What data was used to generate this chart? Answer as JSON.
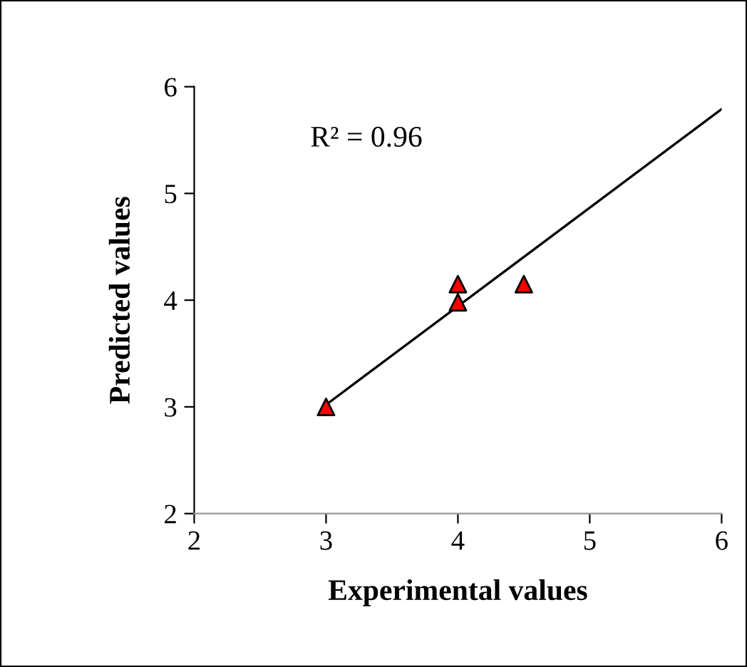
{
  "chart_data": {
    "type": "scatter",
    "xlabel": "Experimental values",
    "ylabel": "Predicted values",
    "annotations": [
      "R² = 0.96"
    ],
    "xlim": [
      2,
      6
    ],
    "ylim": [
      2,
      6
    ],
    "xticks": [
      2,
      3,
      4,
      5,
      6
    ],
    "yticks": [
      2,
      3,
      4,
      5,
      6
    ],
    "grid": false,
    "legend": false,
    "marker": "triangle",
    "series": [
      {
        "color": "#ff0000",
        "x": [
          3,
          4,
          4,
          4.5
        ],
        "values": [
          3,
          4.15,
          3.98,
          4.15
        ]
      },
      {
        "type": "line",
        "color": "#000000",
        "x": [
          3,
          6
        ],
        "values": [
          3.02,
          5.79
        ],
        "line_style": "solid",
        "marker": "none"
      }
    ]
  }
}
